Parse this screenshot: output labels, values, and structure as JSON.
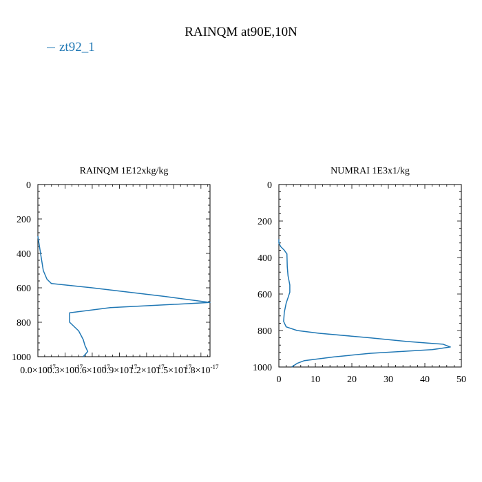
{
  "title": "RAINQM at90E,10N",
  "legend": {
    "label": "zt92_1",
    "color": "#1f77b4"
  },
  "chart_data": [
    {
      "type": "line",
      "title": "RAINQM  1E12xkg/kg",
      "xlim": [
        0,
        1.9e-17
      ],
      "ylim": [
        1000,
        0
      ],
      "xtick_labels": [
        "0.0×10",
        "0.3×10",
        "0.6×10",
        "0.9×10",
        "1.2×10",
        "1.5×10",
        "1.8×10"
      ],
      "xtick_exponents": [
        "-17",
        "-17",
        "-17",
        "-17",
        "-17",
        "-17",
        "-17"
      ],
      "ytick_labels": [
        "0",
        "200",
        "400",
        "600",
        "800",
        "1000"
      ],
      "series": [
        {
          "color": "#1f77b4",
          "points": [
            [
              0,
              300
            ],
            [
              3e-19,
              400
            ],
            [
              6e-19,
              500
            ],
            [
              1e-18,
              550
            ],
            [
              1.5e-18,
              575
            ],
            [
              6e-18,
              600
            ],
            [
              1.4e-17,
              650
            ],
            [
              1.9e-17,
              685
            ],
            [
              8e-18,
              715
            ],
            [
              3.5e-18,
              745
            ],
            [
              3.5e-18,
              800
            ],
            [
              4.5e-18,
              850
            ],
            [
              5e-18,
              900
            ],
            [
              5.2e-18,
              935
            ],
            [
              5.5e-18,
              970
            ],
            [
              5e-18,
              1000
            ]
          ]
        }
      ]
    },
    {
      "type": "line",
      "title": "NUMRAI  1E3x1/kg",
      "xlim": [
        0,
        50
      ],
      "ylim": [
        1000,
        0
      ],
      "xtick_labels": [
        "0",
        "10",
        "20",
        "30",
        "40",
        "50"
      ],
      "ytick_labels": [
        "0",
        "200",
        "400",
        "600",
        "800",
        "1000"
      ],
      "series": [
        {
          "color": "#1f77b4",
          "points": [
            [
              0,
              300
            ],
            [
              0,
              320
            ],
            [
              0.5,
              340
            ],
            [
              1.5,
              360
            ],
            [
              2.2,
              380
            ],
            [
              2.3,
              450
            ],
            [
              2.5,
              500
            ],
            [
              3,
              550
            ],
            [
              3,
              590
            ],
            [
              2.5,
              620
            ],
            [
              2,
              650
            ],
            [
              1.5,
              700
            ],
            [
              1.3,
              750
            ],
            [
              2,
              780
            ],
            [
              5,
              800
            ],
            [
              11,
              815
            ],
            [
              25,
              840
            ],
            [
              35,
              860
            ],
            [
              45,
              875
            ],
            [
              47,
              890
            ],
            [
              42,
              905
            ],
            [
              25,
              925
            ],
            [
              15,
              945
            ],
            [
              7,
              965
            ],
            [
              5,
              980
            ],
            [
              3.5,
              1000
            ]
          ]
        }
      ]
    }
  ]
}
